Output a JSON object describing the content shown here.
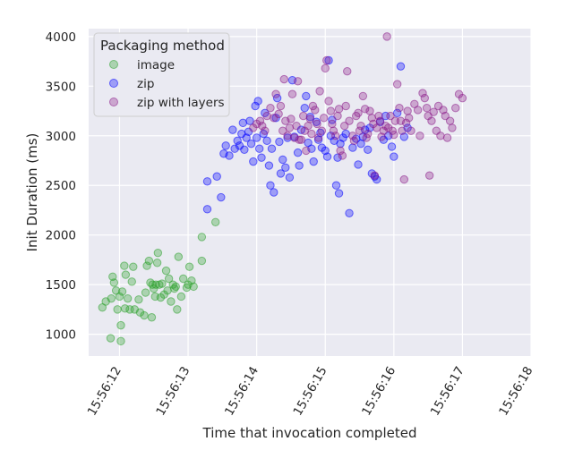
{
  "chart_data": {
    "type": "scatter",
    "title": "",
    "xlabel": "Time that invocation completed",
    "ylabel": "Init Duration (ms)",
    "x_unit": "time of day (HH:MM:SS)",
    "xlim": [
      "15:56:11.55",
      "15:56:18.0"
    ],
    "ylim": [
      780,
      4080
    ],
    "x_ticks": [
      "15:56:12",
      "15:56:13",
      "15:56:14",
      "15:56:15",
      "15:56:16",
      "15:56:17",
      "15:56:18"
    ],
    "y_ticks": [
      1000,
      1500,
      2000,
      2500,
      3000,
      3500,
      4000
    ],
    "x_tick_rotation": 60,
    "grid": true,
    "background": "#eaeaf2",
    "legend": {
      "title": "Packaging method",
      "placement": "top-left"
    },
    "series": [
      {
        "name": "image",
        "color": "#2ca02c",
        "points": [
          [
            "15:56:11.75",
            1270
          ],
          [
            "15:56:11.80",
            1330
          ],
          [
            "15:56:11.87",
            960
          ],
          [
            "15:56:11.88",
            1360
          ],
          [
            "15:56:11.90",
            1580
          ],
          [
            "15:56:11.92",
            1520
          ],
          [
            "15:56:11.95",
            1440
          ],
          [
            "15:56:11.97",
            1250
          ],
          [
            "15:56:12.00",
            1380
          ],
          [
            "15:56:12.02",
            930
          ],
          [
            "15:56:12.02",
            1090
          ],
          [
            "15:56:12.04",
            1430
          ],
          [
            "15:56:12.07",
            1690
          ],
          [
            "15:56:12.08",
            1260
          ],
          [
            "15:56:12.09",
            1600
          ],
          [
            "15:56:12.12",
            1360
          ],
          [
            "15:56:12.15",
            1250
          ],
          [
            "15:56:12.18",
            1530
          ],
          [
            "15:56:12.20",
            1680
          ],
          [
            "15:56:12.22",
            1250
          ],
          [
            "15:56:12.28",
            1350
          ],
          [
            "15:56:12.30",
            1220
          ],
          [
            "15:56:12.36",
            1190
          ],
          [
            "15:56:12.38",
            1420
          ],
          [
            "15:56:12.40",
            1690
          ],
          [
            "15:56:12.43",
            1740
          ],
          [
            "15:56:12.45",
            1520
          ],
          [
            "15:56:12.47",
            1170
          ],
          [
            "15:56:12.48",
            1500
          ],
          [
            "15:56:12.50",
            1460
          ],
          [
            "15:56:12.52",
            1380
          ],
          [
            "15:56:12.53",
            1500
          ],
          [
            "15:56:12.55",
            1720
          ],
          [
            "15:56:12.56",
            1820
          ],
          [
            "15:56:12.58",
            1500
          ],
          [
            "15:56:12.60",
            1370
          ],
          [
            "15:56:12.62",
            1510
          ],
          [
            "15:56:12.65",
            1400
          ],
          [
            "15:56:12.68",
            1640
          ],
          [
            "15:56:12.70",
            1440
          ],
          [
            "15:56:12.72",
            1560
          ],
          [
            "15:56:12.75",
            1330
          ],
          [
            "15:56:12.78",
            1500
          ],
          [
            "15:56:12.80",
            1460
          ],
          [
            "15:56:12.82",
            1480
          ],
          [
            "15:56:12.84",
            1250
          ],
          [
            "15:56:12.86",
            1780
          ],
          [
            "15:56:12.90",
            1380
          ],
          [
            "15:56:12.93",
            1560
          ],
          [
            "15:56:12.98",
            1470
          ],
          [
            "15:56:13.00",
            1500
          ],
          [
            "15:56:13.02",
            1680
          ],
          [
            "15:56:13.05",
            1540
          ],
          [
            "15:56:13.08",
            1480
          ],
          [
            "15:56:13.20",
            1980
          ],
          [
            "15:56:13.20",
            1740
          ],
          [
            "15:56:13.40",
            2130
          ]
        ]
      },
      {
        "name": "zip",
        "color": "#0000ff",
        "points": [
          [
            "15:56:13.28",
            2540
          ],
          [
            "15:56:13.28",
            2260
          ],
          [
            "15:56:13.42",
            2590
          ],
          [
            "15:56:13.48",
            2380
          ],
          [
            "15:56:13.52",
            2820
          ],
          [
            "15:56:13.55",
            2900
          ],
          [
            "15:56:13.60",
            2800
          ],
          [
            "15:56:13.65",
            3060
          ],
          [
            "15:56:13.68",
            2870
          ],
          [
            "15:56:13.72",
            2950
          ],
          [
            "15:56:13.75",
            2900
          ],
          [
            "15:56:13.78",
            3020
          ],
          [
            "15:56:13.80",
            3130
          ],
          [
            "15:56:13.82",
            2860
          ],
          [
            "15:56:13.85",
            2980
          ],
          [
            "15:56:13.88",
            3040
          ],
          [
            "15:56:13.90",
            3150
          ],
          [
            "15:56:13.92",
            2920
          ],
          [
            "15:56:13.95",
            2740
          ],
          [
            "15:56:13.98",
            3300
          ],
          [
            "15:56:14.00",
            2980
          ],
          [
            "15:56:14.02",
            3350
          ],
          [
            "15:56:14.04",
            2870
          ],
          [
            "15:56:14.07",
            2780
          ],
          [
            "15:56:14.10",
            3020
          ],
          [
            "15:56:14.12",
            3230
          ],
          [
            "15:56:14.15",
            2950
          ],
          [
            "15:56:14.18",
            2700
          ],
          [
            "15:56:14.20",
            2500
          ],
          [
            "15:56:14.22",
            2870
          ],
          [
            "15:56:14.25",
            2430
          ],
          [
            "15:56:14.28",
            3180
          ],
          [
            "15:56:14.30",
            3380
          ],
          [
            "15:56:14.33",
            2940
          ],
          [
            "15:56:14.35",
            2620
          ],
          [
            "15:56:14.38",
            2760
          ],
          [
            "15:56:14.42",
            2680
          ],
          [
            "15:56:14.45",
            2980
          ],
          [
            "15:56:14.48",
            2580
          ],
          [
            "15:56:14.52",
            3560
          ],
          [
            "15:56:14.55",
            2990
          ],
          [
            "15:56:14.60",
            2830
          ],
          [
            "15:56:14.62",
            2700
          ],
          [
            "15:56:14.65",
            3060
          ],
          [
            "15:56:14.70",
            3280
          ],
          [
            "15:56:14.72",
            3400
          ],
          [
            "15:56:14.75",
            2930
          ],
          [
            "15:56:14.78",
            3190
          ],
          [
            "15:56:14.80",
            2870
          ],
          [
            "15:56:14.83",
            2740
          ],
          [
            "15:56:14.87",
            3140
          ],
          [
            "15:56:14.90",
            2960
          ],
          [
            "15:56:14.93",
            3030
          ],
          [
            "15:56:14.95",
            2880
          ],
          [
            "15:56:15.00",
            2850
          ],
          [
            "15:56:15.03",
            2790
          ],
          [
            "15:56:15.05",
            3760
          ],
          [
            "15:56:15.08",
            3000
          ],
          [
            "15:56:15.10",
            3160
          ],
          [
            "15:56:15.13",
            2950
          ],
          [
            "15:56:15.16",
            2500
          ],
          [
            "15:56:15.18",
            2780
          ],
          [
            "15:56:15.20",
            2420
          ],
          [
            "15:56:15.22",
            2920
          ],
          [
            "15:56:15.26",
            2980
          ],
          [
            "15:56:15.30",
            3020
          ],
          [
            "15:56:15.35",
            2220
          ],
          [
            "15:56:15.40",
            2880
          ],
          [
            "15:56:15.45",
            2970
          ],
          [
            "15:56:15.48",
            2710
          ],
          [
            "15:56:15.52",
            2920
          ],
          [
            "15:56:15.55",
            2990
          ],
          [
            "15:56:15.58",
            3060
          ],
          [
            "15:56:15.62",
            2860
          ],
          [
            "15:56:15.65",
            3080
          ],
          [
            "15:56:15.68",
            2620
          ],
          [
            "15:56:15.72",
            2590
          ],
          [
            "15:56:15.75",
            2560
          ],
          [
            "15:56:15.80",
            3140
          ],
          [
            "15:56:15.85",
            2960
          ],
          [
            "15:56:15.88",
            3200
          ],
          [
            "15:56:15.92",
            3000
          ],
          [
            "15:56:15.97",
            2890
          ],
          [
            "15:56:16.00",
            2790
          ],
          [
            "15:56:16.05",
            3230
          ],
          [
            "15:56:16.10",
            3700
          ],
          [
            "15:56:16.15",
            2990
          ],
          [
            "15:56:16.20",
            3080
          ]
        ]
      },
      {
        "name": "zip with layers",
        "color": "#8b1a89",
        "points": [
          [
            "15:56:13.95",
            3080
          ],
          [
            "15:56:14.00",
            3120
          ],
          [
            "15:56:14.05",
            3150
          ],
          [
            "15:56:14.08",
            3100
          ],
          [
            "15:56:14.12",
            3050
          ],
          [
            "15:56:14.15",
            3200
          ],
          [
            "15:56:14.20",
            3280
          ],
          [
            "15:56:14.25",
            3180
          ],
          [
            "15:56:14.28",
            3420
          ],
          [
            "15:56:14.32",
            3220
          ],
          [
            "15:56:14.35",
            3300
          ],
          [
            "15:56:14.38",
            3050
          ],
          [
            "15:56:14.40",
            3570
          ],
          [
            "15:56:14.42",
            3150
          ],
          [
            "15:56:14.45",
            3000
          ],
          [
            "15:56:14.48",
            3080
          ],
          [
            "15:56:14.50",
            3170
          ],
          [
            "15:56:14.52",
            3420
          ],
          [
            "15:56:14.55",
            2980
          ],
          [
            "15:56:14.58",
            3100
          ],
          [
            "15:56:14.60",
            3550
          ],
          [
            "15:56:14.62",
            2960
          ],
          [
            "15:56:14.65",
            2960
          ],
          [
            "15:56:14.68",
            3200
          ],
          [
            "15:56:14.70",
            3050
          ],
          [
            "15:56:14.72",
            2850
          ],
          [
            "15:56:14.75",
            3100
          ],
          [
            "15:56:14.78",
            3170
          ],
          [
            "15:56:14.80",
            3020
          ],
          [
            "15:56:14.82",
            3300
          ],
          [
            "15:56:14.85",
            3260
          ],
          [
            "15:56:14.88",
            3120
          ],
          [
            "15:56:14.90",
            2980
          ],
          [
            "15:56:14.92",
            3450
          ],
          [
            "15:56:14.95",
            3050
          ],
          [
            "15:56:14.98",
            3180
          ],
          [
            "15:56:15.00",
            3680
          ],
          [
            "15:56:15.02",
            3760
          ],
          [
            "15:56:15.05",
            3350
          ],
          [
            "15:56:15.08",
            3250
          ],
          [
            "15:56:15.10",
            3120
          ],
          [
            "15:56:15.12",
            3050
          ],
          [
            "15:56:15.15",
            3000
          ],
          [
            "15:56:15.18",
            3200
          ],
          [
            "15:56:15.20",
            3270
          ],
          [
            "15:56:15.22",
            2850
          ],
          [
            "15:56:15.25",
            2800
          ],
          [
            "15:56:15.28",
            3100
          ],
          [
            "15:56:15.30",
            3300
          ],
          [
            "15:56:15.32",
            3650
          ],
          [
            "15:56:15.35",
            3150
          ],
          [
            "15:56:15.40",
            3000
          ],
          [
            "15:56:15.42",
            2950
          ],
          [
            "15:56:15.45",
            3200
          ],
          [
            "15:56:15.48",
            3230
          ],
          [
            "15:56:15.50",
            3050
          ],
          [
            "15:56:15.52",
            3100
          ],
          [
            "15:56:15.55",
            3400
          ],
          [
            "15:56:15.58",
            3270
          ],
          [
            "15:56:15.60",
            2980
          ],
          [
            "15:56:15.62",
            3020
          ],
          [
            "15:56:15.65",
            3250
          ],
          [
            "15:56:15.68",
            3180
          ],
          [
            "15:56:15.70",
            3120
          ],
          [
            "15:56:15.72",
            2600
          ],
          [
            "15:56:15.75",
            3080
          ],
          [
            "15:56:15.78",
            3200
          ],
          [
            "15:56:15.80",
            3150
          ],
          [
            "15:56:15.82",
            2990
          ],
          [
            "15:56:15.85",
            3050
          ],
          [
            "15:56:15.88",
            3100
          ],
          [
            "15:56:15.90",
            4000
          ],
          [
            "15:56:15.92",
            3080
          ],
          [
            "15:56:15.95",
            3200
          ],
          [
            "15:56:15.98",
            3050
          ],
          [
            "15:56:16.00",
            3010
          ],
          [
            "15:56:16.02",
            3150
          ],
          [
            "15:56:16.05",
            3520
          ],
          [
            "15:56:16.08",
            3280
          ],
          [
            "15:56:16.10",
            3150
          ],
          [
            "15:56:16.12",
            3050
          ],
          [
            "15:56:16.15",
            2560
          ],
          [
            "15:56:16.18",
            3130
          ],
          [
            "15:56:16.20",
            3250
          ],
          [
            "15:56:16.22",
            3180
          ],
          [
            "15:56:16.25",
            3050
          ],
          [
            "15:56:16.30",
            3320
          ],
          [
            "15:56:16.35",
            3260
          ],
          [
            "15:56:16.38",
            3000
          ],
          [
            "15:56:16.42",
            3430
          ],
          [
            "15:56:16.45",
            3380
          ],
          [
            "15:56:16.48",
            3280
          ],
          [
            "15:56:16.50",
            3200
          ],
          [
            "15:56:16.52",
            2600
          ],
          [
            "15:56:16.55",
            3150
          ],
          [
            "15:56:16.58",
            3240
          ],
          [
            "15:56:16.62",
            3050
          ],
          [
            "15:56:16.65",
            3300
          ],
          [
            "15:56:16.68",
            3000
          ],
          [
            "15:56:16.72",
            3260
          ],
          [
            "15:56:16.75",
            3200
          ],
          [
            "15:56:16.78",
            2980
          ],
          [
            "15:56:16.82",
            3150
          ],
          [
            "15:56:16.85",
            3080
          ],
          [
            "15:56:16.90",
            3280
          ],
          [
            "15:56:16.95",
            3420
          ],
          [
            "15:56:17.00",
            3380
          ]
        ]
      }
    ]
  }
}
